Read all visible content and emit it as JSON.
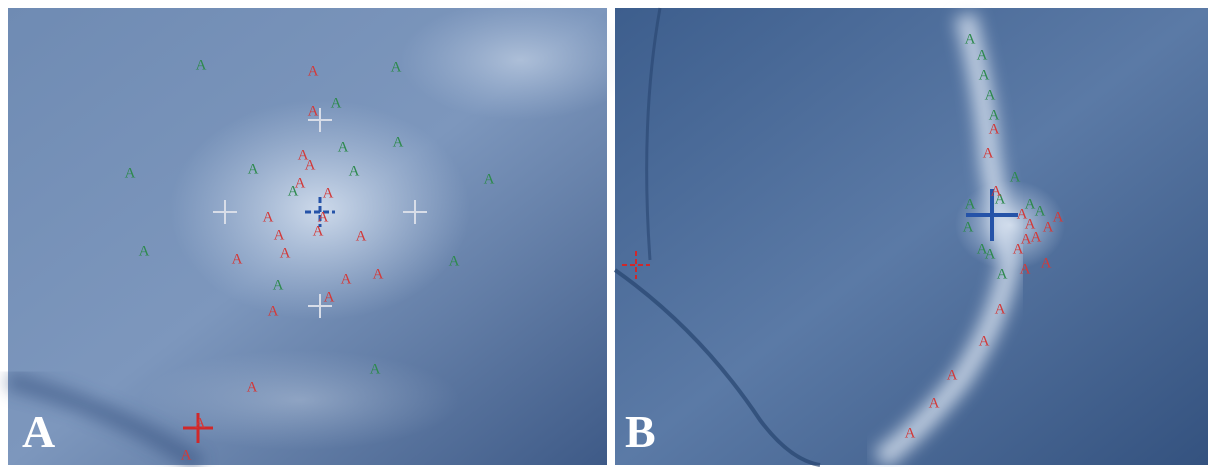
{
  "panels": [
    {
      "label": "A",
      "green_markers": [
        "A",
        "A",
        "A",
        "A",
        "A",
        "A",
        "A",
        "A",
        "A",
        "A",
        "A",
        "A",
        "A",
        "A"
      ],
      "red_markers": [
        "A",
        "A",
        "A",
        "A",
        "A",
        "A",
        "A",
        "A",
        "A",
        "A",
        "A",
        "A",
        "A",
        "A",
        "A",
        "A",
        "A",
        "A",
        "A",
        "A"
      ]
    },
    {
      "label": "B",
      "green_markers": [
        "A",
        "A",
        "A",
        "A",
        "A",
        "A",
        "A",
        "A",
        "A",
        "A",
        "A",
        "A",
        "A",
        "A"
      ],
      "red_markers": [
        "A",
        "A",
        "A",
        "A",
        "A",
        "A",
        "A",
        "A",
        "A",
        "A",
        "A",
        "A",
        "A",
        "A",
        "A",
        "A",
        "A"
      ]
    }
  ]
}
